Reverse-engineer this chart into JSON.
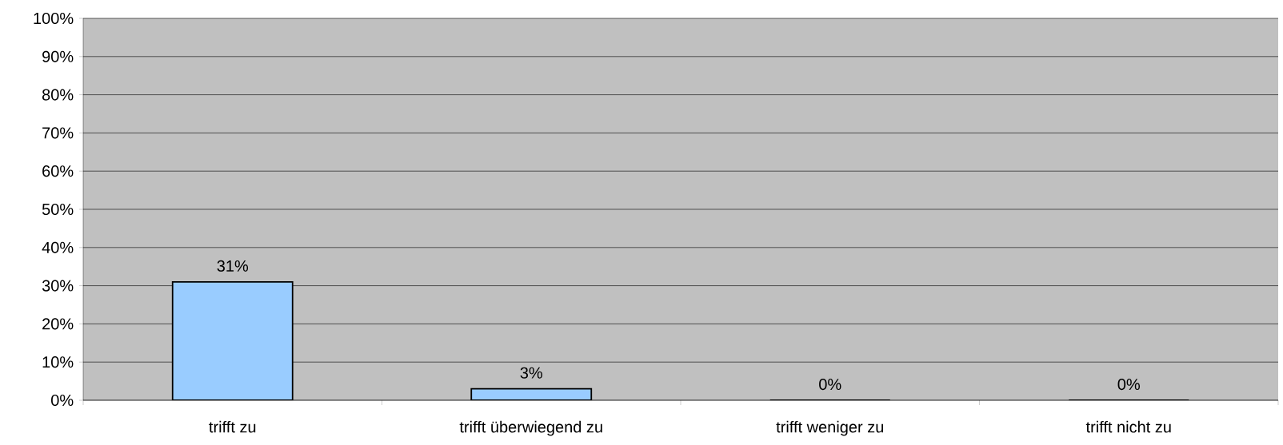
{
  "chart_data": {
    "type": "bar",
    "categories": [
      "trifft zu",
      "trifft überwiegend zu",
      "trifft weniger zu",
      "trifft nicht zu"
    ],
    "values": [
      31,
      3,
      0,
      0
    ],
    "value_labels": [
      "31%",
      "3%",
      "0%",
      "0%"
    ],
    "color": "#99ccff",
    "ylim": [
      0,
      100
    ],
    "yticks": [
      {
        "value": 0,
        "label": "0%"
      },
      {
        "value": 10,
        "label": "10%"
      },
      {
        "value": 20,
        "label": "20%"
      },
      {
        "value": 30,
        "label": "30%"
      },
      {
        "value": 40,
        "label": "40%"
      },
      {
        "value": 50,
        "label": "50%"
      },
      {
        "value": 60,
        "label": "60%"
      },
      {
        "value": 70,
        "label": "70%"
      },
      {
        "value": 80,
        "label": "80%"
      },
      {
        "value": 90,
        "label": "90%"
      },
      {
        "value": 100,
        "label": "100%"
      }
    ],
    "grid": "y"
  }
}
